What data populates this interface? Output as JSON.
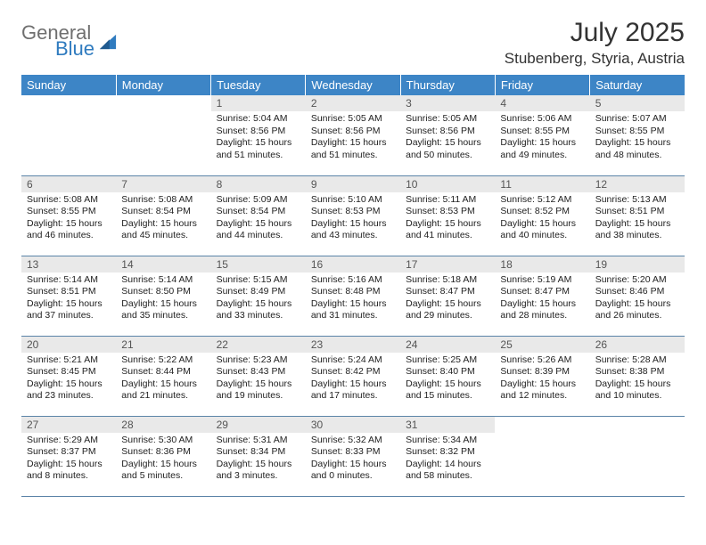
{
  "logo": {
    "general": "General",
    "blue": "Blue"
  },
  "title": "July 2025",
  "location": "Stubenberg, Styria, Austria",
  "colors": {
    "header_bg": "#3d85c6",
    "header_text": "#ffffff",
    "daynum_bg": "#e9e9e9",
    "row_divider": "#5b84a8",
    "logo_gray": "#6f6f6f",
    "logo_blue": "#2f7bbf"
  },
  "weekdays": [
    "Sunday",
    "Monday",
    "Tuesday",
    "Wednesday",
    "Thursday",
    "Friday",
    "Saturday"
  ],
  "weeks": [
    [
      null,
      null,
      {
        "n": "1",
        "sr": "Sunrise: 5:04 AM",
        "ss": "Sunset: 8:56 PM",
        "dl": "Daylight: 15 hours and 51 minutes."
      },
      {
        "n": "2",
        "sr": "Sunrise: 5:05 AM",
        "ss": "Sunset: 8:56 PM",
        "dl": "Daylight: 15 hours and 51 minutes."
      },
      {
        "n": "3",
        "sr": "Sunrise: 5:05 AM",
        "ss": "Sunset: 8:56 PM",
        "dl": "Daylight: 15 hours and 50 minutes."
      },
      {
        "n": "4",
        "sr": "Sunrise: 5:06 AM",
        "ss": "Sunset: 8:55 PM",
        "dl": "Daylight: 15 hours and 49 minutes."
      },
      {
        "n": "5",
        "sr": "Sunrise: 5:07 AM",
        "ss": "Sunset: 8:55 PM",
        "dl": "Daylight: 15 hours and 48 minutes."
      }
    ],
    [
      {
        "n": "6",
        "sr": "Sunrise: 5:08 AM",
        "ss": "Sunset: 8:55 PM",
        "dl": "Daylight: 15 hours and 46 minutes."
      },
      {
        "n": "7",
        "sr": "Sunrise: 5:08 AM",
        "ss": "Sunset: 8:54 PM",
        "dl": "Daylight: 15 hours and 45 minutes."
      },
      {
        "n": "8",
        "sr": "Sunrise: 5:09 AM",
        "ss": "Sunset: 8:54 PM",
        "dl": "Daylight: 15 hours and 44 minutes."
      },
      {
        "n": "9",
        "sr": "Sunrise: 5:10 AM",
        "ss": "Sunset: 8:53 PM",
        "dl": "Daylight: 15 hours and 43 minutes."
      },
      {
        "n": "10",
        "sr": "Sunrise: 5:11 AM",
        "ss": "Sunset: 8:53 PM",
        "dl": "Daylight: 15 hours and 41 minutes."
      },
      {
        "n": "11",
        "sr": "Sunrise: 5:12 AM",
        "ss": "Sunset: 8:52 PM",
        "dl": "Daylight: 15 hours and 40 minutes."
      },
      {
        "n": "12",
        "sr": "Sunrise: 5:13 AM",
        "ss": "Sunset: 8:51 PM",
        "dl": "Daylight: 15 hours and 38 minutes."
      }
    ],
    [
      {
        "n": "13",
        "sr": "Sunrise: 5:14 AM",
        "ss": "Sunset: 8:51 PM",
        "dl": "Daylight: 15 hours and 37 minutes."
      },
      {
        "n": "14",
        "sr": "Sunrise: 5:14 AM",
        "ss": "Sunset: 8:50 PM",
        "dl": "Daylight: 15 hours and 35 minutes."
      },
      {
        "n": "15",
        "sr": "Sunrise: 5:15 AM",
        "ss": "Sunset: 8:49 PM",
        "dl": "Daylight: 15 hours and 33 minutes."
      },
      {
        "n": "16",
        "sr": "Sunrise: 5:16 AM",
        "ss": "Sunset: 8:48 PM",
        "dl": "Daylight: 15 hours and 31 minutes."
      },
      {
        "n": "17",
        "sr": "Sunrise: 5:18 AM",
        "ss": "Sunset: 8:47 PM",
        "dl": "Daylight: 15 hours and 29 minutes."
      },
      {
        "n": "18",
        "sr": "Sunrise: 5:19 AM",
        "ss": "Sunset: 8:47 PM",
        "dl": "Daylight: 15 hours and 28 minutes."
      },
      {
        "n": "19",
        "sr": "Sunrise: 5:20 AM",
        "ss": "Sunset: 8:46 PM",
        "dl": "Daylight: 15 hours and 26 minutes."
      }
    ],
    [
      {
        "n": "20",
        "sr": "Sunrise: 5:21 AM",
        "ss": "Sunset: 8:45 PM",
        "dl": "Daylight: 15 hours and 23 minutes."
      },
      {
        "n": "21",
        "sr": "Sunrise: 5:22 AM",
        "ss": "Sunset: 8:44 PM",
        "dl": "Daylight: 15 hours and 21 minutes."
      },
      {
        "n": "22",
        "sr": "Sunrise: 5:23 AM",
        "ss": "Sunset: 8:43 PM",
        "dl": "Daylight: 15 hours and 19 minutes."
      },
      {
        "n": "23",
        "sr": "Sunrise: 5:24 AM",
        "ss": "Sunset: 8:42 PM",
        "dl": "Daylight: 15 hours and 17 minutes."
      },
      {
        "n": "24",
        "sr": "Sunrise: 5:25 AM",
        "ss": "Sunset: 8:40 PM",
        "dl": "Daylight: 15 hours and 15 minutes."
      },
      {
        "n": "25",
        "sr": "Sunrise: 5:26 AM",
        "ss": "Sunset: 8:39 PM",
        "dl": "Daylight: 15 hours and 12 minutes."
      },
      {
        "n": "26",
        "sr": "Sunrise: 5:28 AM",
        "ss": "Sunset: 8:38 PM",
        "dl": "Daylight: 15 hours and 10 minutes."
      }
    ],
    [
      {
        "n": "27",
        "sr": "Sunrise: 5:29 AM",
        "ss": "Sunset: 8:37 PM",
        "dl": "Daylight: 15 hours and 8 minutes."
      },
      {
        "n": "28",
        "sr": "Sunrise: 5:30 AM",
        "ss": "Sunset: 8:36 PM",
        "dl": "Daylight: 15 hours and 5 minutes."
      },
      {
        "n": "29",
        "sr": "Sunrise: 5:31 AM",
        "ss": "Sunset: 8:34 PM",
        "dl": "Daylight: 15 hours and 3 minutes."
      },
      {
        "n": "30",
        "sr": "Sunrise: 5:32 AM",
        "ss": "Sunset: 8:33 PM",
        "dl": "Daylight: 15 hours and 0 minutes."
      },
      {
        "n": "31",
        "sr": "Sunrise: 5:34 AM",
        "ss": "Sunset: 8:32 PM",
        "dl": "Daylight: 14 hours and 58 minutes."
      },
      null,
      null
    ]
  ]
}
